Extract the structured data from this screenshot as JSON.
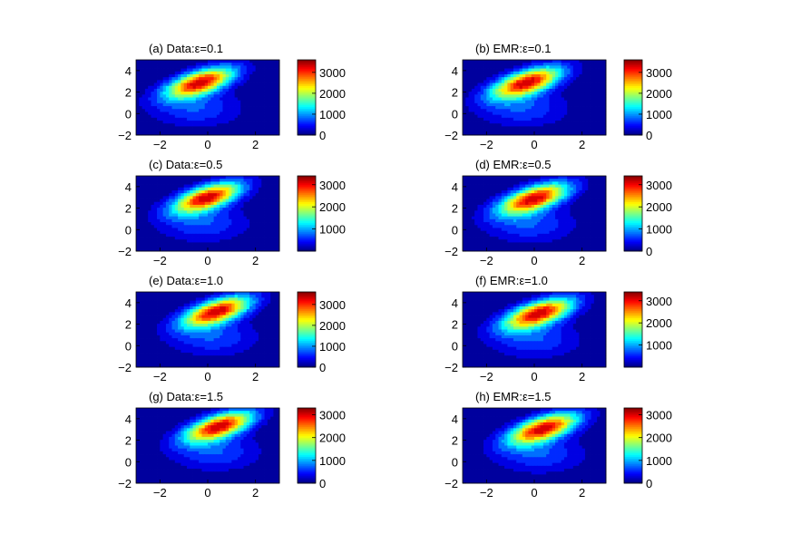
{
  "chart_data": [
    {
      "type": "heatmap",
      "title": "(a) Data:ε=0.1",
      "x_ticks": [
        "−2",
        "0",
        "2"
      ],
      "y_ticks": [
        "−2",
        "0",
        "2",
        "4"
      ],
      "xlim": [
        -3,
        3
      ],
      "ylim": [
        -2,
        5
      ],
      "colorbar": {
        "ticks": [
          "0",
          "1000",
          "2000",
          "3000"
        ],
        "range": [
          0,
          3600
        ]
      },
      "peak": {
        "x": -0.3,
        "y": 2.9,
        "value": 3500
      }
    },
    {
      "type": "heatmap",
      "title": "(b) EMR:ε=0.1",
      "x_ticks": [
        "−2",
        "0",
        "2"
      ],
      "y_ticks": [
        "−2",
        "0",
        "2",
        "4"
      ],
      "xlim": [
        -3,
        3
      ],
      "ylim": [
        -2,
        5
      ],
      "colorbar": {
        "ticks": [
          "0",
          "1000",
          "2000",
          "3000"
        ],
        "range": [
          0,
          3600
        ]
      },
      "peak": {
        "x": -0.3,
        "y": 2.9,
        "value": 3500
      }
    },
    {
      "type": "heatmap",
      "title": "(c) Data:ε=0.5",
      "x_ticks": [
        "−2",
        "0",
        "2"
      ],
      "y_ticks": [
        "−2",
        "0",
        "2",
        "4"
      ],
      "xlim": [
        -3,
        3
      ],
      "ylim": [
        -2,
        5
      ],
      "colorbar": {
        "ticks": [
          "1000",
          "2000",
          "3000"
        ],
        "range": [
          0,
          3400
        ]
      },
      "peak": {
        "x": 0.0,
        "y": 3.0,
        "value": 3300
      }
    },
    {
      "type": "heatmap",
      "title": "(d) EMR:ε=0.5",
      "x_ticks": [
        "−2",
        "0",
        "2"
      ],
      "y_ticks": [
        "−2",
        "0",
        "2",
        "4"
      ],
      "xlim": [
        -3,
        3
      ],
      "ylim": [
        -2,
        5
      ],
      "colorbar": {
        "ticks": [
          "0",
          "1000",
          "2000",
          "3000"
        ],
        "range": [
          0,
          3400
        ]
      },
      "peak": {
        "x": 0.0,
        "y": 2.9,
        "value": 3300
      }
    },
    {
      "type": "heatmap",
      "title": "(e) Data:ε=1.0",
      "x_ticks": [
        "−2",
        "0",
        "2"
      ],
      "y_ticks": [
        "−2",
        "0",
        "2",
        "4"
      ],
      "xlim": [
        -3,
        3
      ],
      "ylim": [
        -2,
        5
      ],
      "colorbar": {
        "ticks": [
          "0",
          "1000",
          "2000",
          "3000"
        ],
        "range": [
          0,
          3600
        ]
      },
      "peak": {
        "x": 0.4,
        "y": 3.2,
        "value": 3500
      }
    },
    {
      "type": "heatmap",
      "title": "(f) EMR:ε=1.0",
      "x_ticks": [
        "−2",
        "0",
        "2"
      ],
      "y_ticks": [
        "−2",
        "0",
        "2",
        "4"
      ],
      "xlim": [
        -3,
        3
      ],
      "ylim": [
        -2,
        5
      ],
      "colorbar": {
        "ticks": [
          "1000",
          "2000",
          "3000"
        ],
        "range": [
          0,
          3400
        ]
      },
      "peak": {
        "x": 0.2,
        "y": 3.0,
        "value": 3300
      }
    },
    {
      "type": "heatmap",
      "title": "(g) Data:ε=1.5",
      "x_ticks": [
        "−2",
        "0",
        "2"
      ],
      "y_ticks": [
        "−2",
        "0",
        "2",
        "4"
      ],
      "xlim": [
        -3,
        3
      ],
      "ylim": [
        -2,
        5
      ],
      "colorbar": {
        "ticks": [
          "0",
          "1000",
          "2000",
          "3000"
        ],
        "range": [
          0,
          3300
        ]
      },
      "peak": {
        "x": 0.5,
        "y": 3.3,
        "value": 3200
      }
    },
    {
      "type": "heatmap",
      "title": "(h) EMR:ε=1.5",
      "x_ticks": [
        "−2",
        "0",
        "2"
      ],
      "y_ticks": [
        "−2",
        "0",
        "2",
        "4"
      ],
      "xlim": [
        -3,
        3
      ],
      "ylim": [
        -2,
        5
      ],
      "colorbar": {
        "ticks": [
          "0",
          "1000",
          "2000",
          "3000"
        ],
        "range": [
          0,
          3300
        ]
      },
      "peak": {
        "x": 0.4,
        "y": 3.1,
        "value": 3200
      }
    }
  ]
}
